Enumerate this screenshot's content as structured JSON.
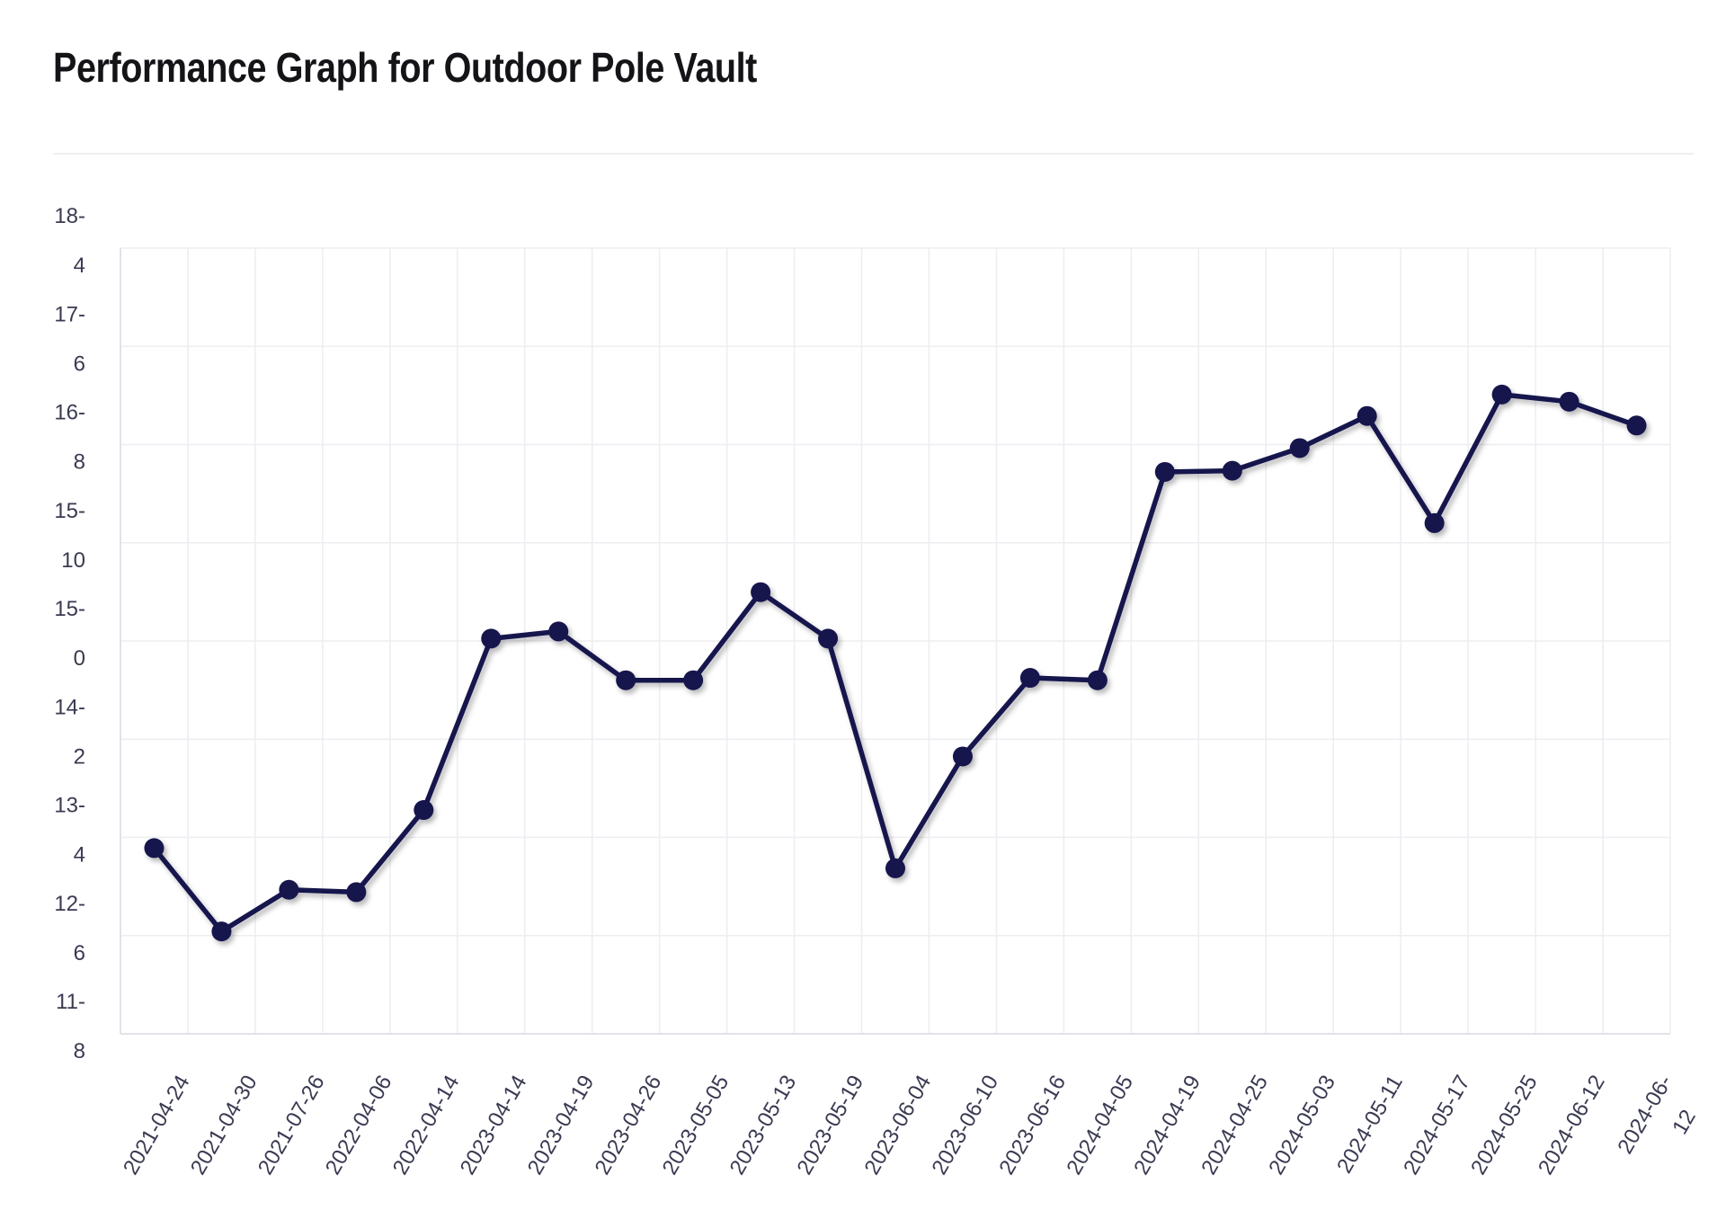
{
  "page": {
    "title": "Performance Graph for Outdoor Pole Vault"
  },
  "chart_data": {
    "type": "line",
    "title": "Performance Graph for Outdoor Pole Vault",
    "xlabel": "",
    "ylabel": "",
    "ylim": [
      11.8,
      18.4
    ],
    "y_ticks": [
      {
        "value": 18.4,
        "lines": [
          "18-",
          "4"
        ]
      },
      {
        "value": 17.6,
        "lines": [
          "17-",
          "6"
        ]
      },
      {
        "value": 16.8,
        "lines": [
          "16-",
          "8"
        ]
      },
      {
        "value": 15.1,
        "lines": [
          "15-",
          "10"
        ]
      },
      {
        "value": 15.0,
        "lines": [
          "15-",
          "0"
        ]
      },
      {
        "value": 14.2,
        "lines": [
          "14-",
          "2"
        ]
      },
      {
        "value": 13.4,
        "lines": [
          "13-",
          "4"
        ]
      },
      {
        "value": 12.6,
        "lines": [
          "12-",
          "6"
        ]
      },
      {
        "value": 11.8,
        "lines": [
          "11-",
          "8"
        ]
      }
    ],
    "categories": [
      "2021-04-24",
      "2021-04-30",
      "2021-07-26",
      "2022-04-06",
      "2022-04-14",
      "2023-04-14",
      "2023-04-19",
      "2023-04-26",
      "2023-05-05",
      "2023-05-13",
      "2023-05-19",
      "2023-06-04",
      "2023-06-10",
      "2023-06-16",
      "2024-04-05",
      "2024-04-19",
      "2024-04-25",
      "2024-05-03",
      "2024-05-11",
      "2024-05-17",
      "2024-05-25",
      "2024-06-12",
      "2024-06-12"
    ],
    "x_label_texts": [
      "2021-04-24",
      "2021-04-30",
      "2021-07-26",
      "2022-04-06",
      "2022-04-14",
      "2023-04-14",
      "2023-04-19",
      "2023-04-26",
      "2023-05-05",
      "2023-05-13",
      "2023-05-19",
      "2023-06-04",
      "2023-06-10",
      "2023-06-16",
      "2024-04-05",
      "2024-04-19",
      "2024-04-25",
      "2024-05-03",
      "2024-05-11",
      "2024-05-17",
      "2024-05-25",
      "2024-06-12",
      "2024-06-"
    ],
    "x_label_overflow": "12",
    "series": [
      {
        "values": [
          13.36,
          12.66,
          13.01,
          12.99,
          13.68,
          15.12,
          15.18,
          14.77,
          14.77,
          15.51,
          15.12,
          13.19,
          14.13,
          14.79,
          14.77,
          16.52,
          16.53,
          16.72,
          16.99,
          16.09,
          17.17,
          17.11,
          16.91
        ],
        "color": "#14124e"
      }
    ],
    "grid": true,
    "legend": "none"
  }
}
